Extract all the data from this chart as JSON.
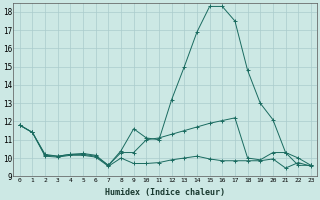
{
  "xlabel": "Humidex (Indice chaleur)",
  "background_color": "#cce8e4",
  "grid_color": "#aacccc",
  "line_color": "#1a6b60",
  "x_values": [
    0,
    1,
    2,
    3,
    4,
    5,
    6,
    7,
    8,
    9,
    10,
    11,
    12,
    13,
    14,
    15,
    16,
    17,
    18,
    19,
    20,
    21,
    22,
    23
  ],
  "series": [
    [
      11.8,
      11.4,
      10.2,
      10.1,
      10.2,
      10.2,
      10.1,
      9.6,
      10.4,
      11.6,
      11.1,
      11.0,
      13.2,
      15.0,
      16.9,
      18.3,
      18.3,
      17.5,
      14.8,
      13.0,
      12.1,
      10.3,
      10.0,
      9.6
    ],
    [
      11.8,
      11.4,
      10.15,
      10.1,
      10.2,
      10.25,
      10.15,
      9.6,
      10.3,
      10.3,
      11.0,
      11.1,
      11.3,
      11.5,
      11.7,
      11.9,
      12.05,
      12.2,
      10.0,
      9.9,
      10.3,
      10.3,
      9.6,
      9.6
    ],
    [
      11.8,
      11.4,
      10.1,
      10.05,
      10.15,
      10.15,
      10.05,
      9.55,
      10.0,
      9.7,
      9.7,
      9.75,
      9.9,
      10.0,
      10.1,
      9.95,
      9.85,
      9.85,
      9.85,
      9.85,
      9.95,
      9.45,
      9.75,
      9.55
    ]
  ],
  "ylim": [
    9,
    18.5
  ],
  "xlim": [
    -0.5,
    23.5
  ],
  "yticks": [
    9,
    10,
    11,
    12,
    13,
    14,
    15,
    16,
    17,
    18
  ],
  "xticks": [
    0,
    1,
    2,
    3,
    4,
    5,
    6,
    7,
    8,
    9,
    10,
    11,
    12,
    13,
    14,
    15,
    16,
    17,
    18,
    19,
    20,
    21,
    22,
    23
  ],
  "marker": "+"
}
